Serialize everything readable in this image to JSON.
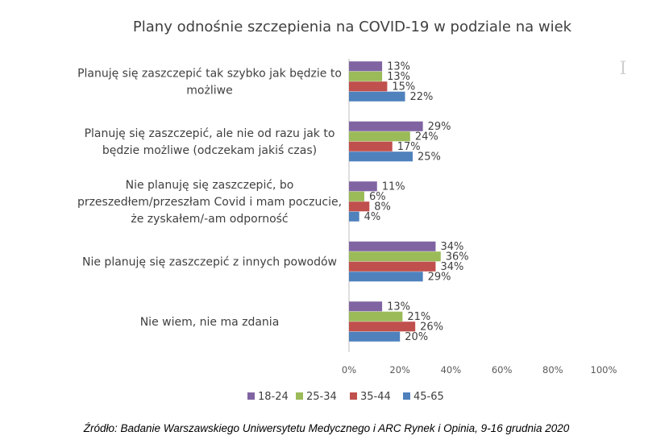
{
  "chart_data": {
    "type": "bar",
    "orientation": "horizontal",
    "title": "Plany odnośnie szczepienia na COVID-19 w podziale na wiek",
    "categories": [
      [
        "Planuję się zaszczepić tak szybko jak będzie to",
        "możliwe"
      ],
      [
        "Planuję się zaszczepić, ale nie od razu jak to",
        "będzie możliwe (odczekam jakiś czas)"
      ],
      [
        "Nie planuję się zaszczepić, bo",
        "przeszedłem/przeszłam Covid i mam poczucie,",
        "że zyskałem/-am odporność"
      ],
      [
        "Nie planuję się zaszczepić z innych powodów"
      ],
      [
        "Nie wiem, nie ma zdania"
      ]
    ],
    "series": [
      {
        "name": "18-24",
        "color": "#8064A2",
        "values": [
          13,
          29,
          11,
          34,
          13
        ]
      },
      {
        "name": "25-34",
        "color": "#9BBB59",
        "values": [
          13,
          24,
          6,
          36,
          21
        ]
      },
      {
        "name": "35-44",
        "color": "#C0504D",
        "values": [
          15,
          17,
          8,
          34,
          26
        ]
      },
      {
        "name": "45-65",
        "color": "#4F81BD",
        "values": [
          22,
          25,
          4,
          29,
          20
        ]
      }
    ],
    "xlim": [
      0,
      100
    ],
    "x_ticks": [
      "0%",
      "20%",
      "40%",
      "60%",
      "80%",
      "100%"
    ],
    "value_suffix": "%",
    "grid": false,
    "legend_position": "bottom"
  },
  "source": "Źródło: Badanie Warszawskiego Uniwersytetu Medycznego i ARC Rynek i Opinia, 9-16 grudnia 2020"
}
